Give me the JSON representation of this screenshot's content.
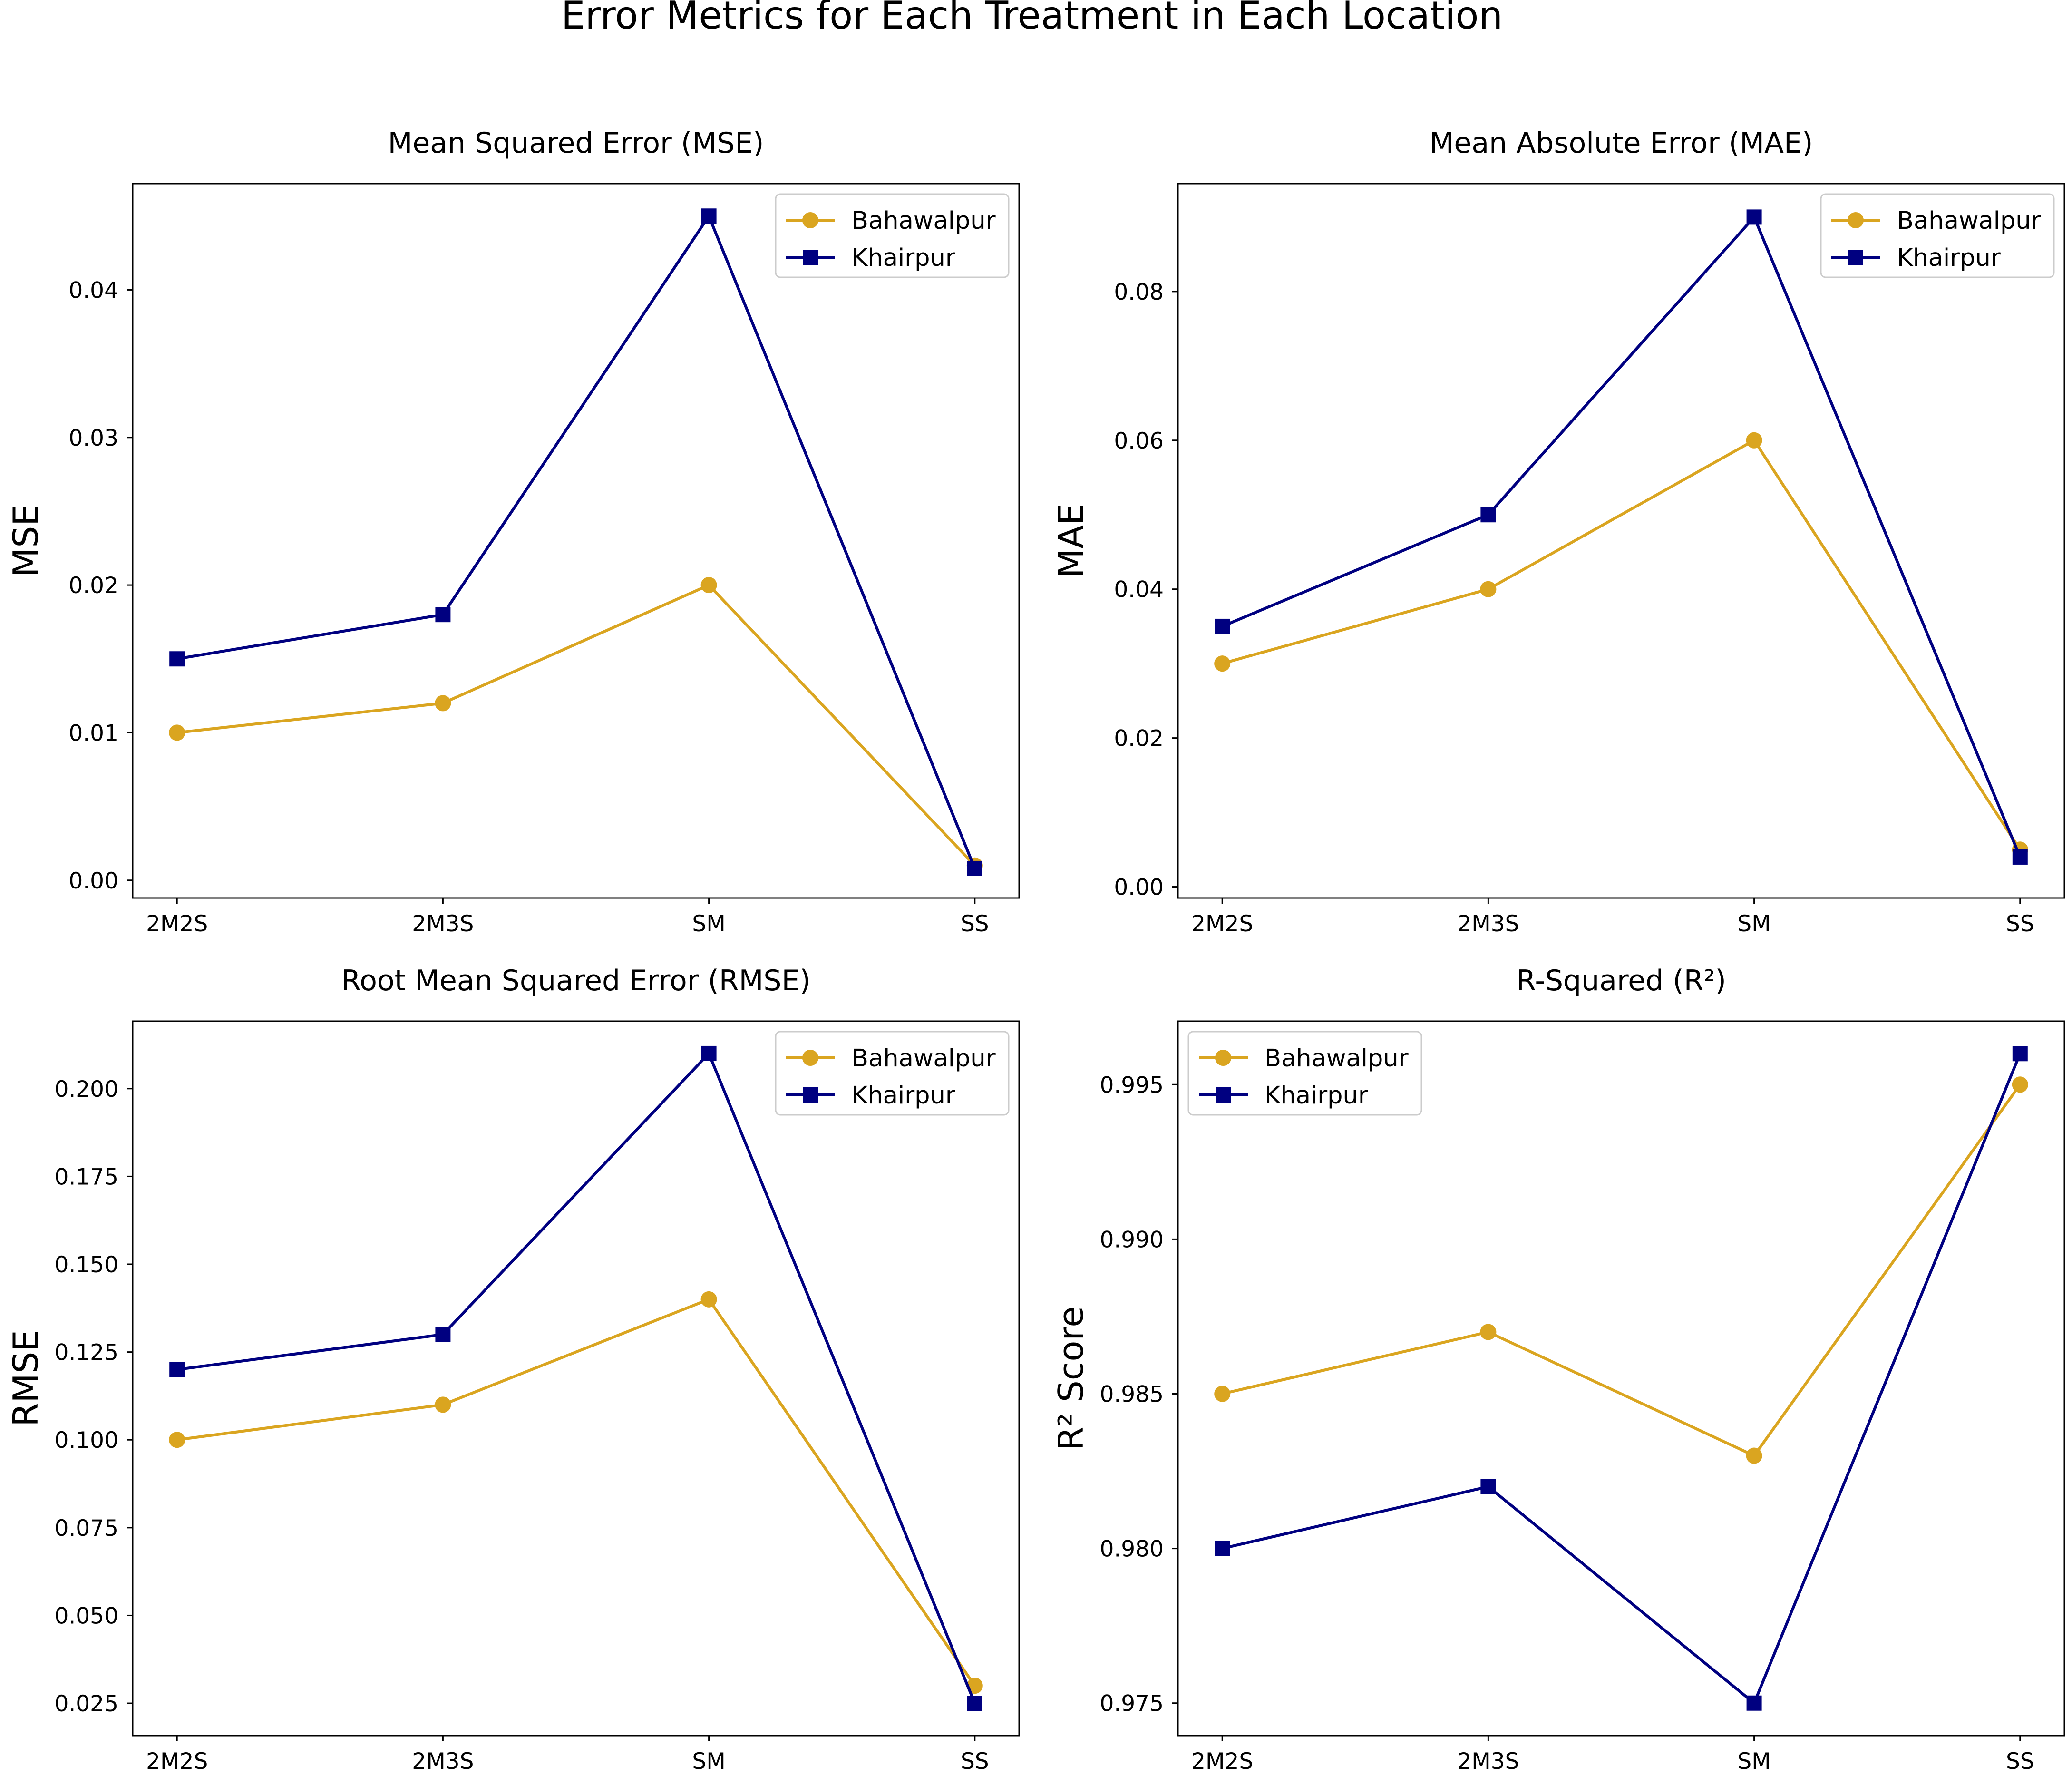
{
  "title": "Error Metrics for Each Treatment in Each Location",
  "colors": {
    "bahawalpur": "#DAA520",
    "khairpur": "#000080",
    "axis": "#000000",
    "legend_border": "#cccccc"
  },
  "chart_data": [
    {
      "type": "line",
      "title": "Mean Squared Error (MSE)",
      "xlabel": "",
      "ylabel": "MSE",
      "categories": [
        "2M2S",
        "2M3S",
        "SM",
        "SS"
      ],
      "ylim": [
        -0.0012,
        0.0472
      ],
      "yticks": [
        0.0,
        0.01,
        0.02,
        0.03,
        0.04
      ],
      "ytick_labels": [
        "0.00",
        "0.01",
        "0.02",
        "0.03",
        "0.04"
      ],
      "legend_position": "upper right",
      "series": [
        {
          "name": "Bahawalpur",
          "values": [
            0.01,
            0.012,
            0.02,
            0.001
          ],
          "color": "#DAA520",
          "marker": "circle"
        },
        {
          "name": "Khairpur",
          "values": [
            0.015,
            0.018,
            0.045,
            0.0008
          ],
          "color": "#000080",
          "marker": "square"
        }
      ]
    },
    {
      "type": "line",
      "title": "Mean Absolute Error (MAE)",
      "xlabel": "",
      "ylabel": "MAE",
      "categories": [
        "2M2S",
        "2M3S",
        "SM",
        "SS"
      ],
      "ylim": [
        -0.0015,
        0.0945
      ],
      "yticks": [
        0.0,
        0.02,
        0.04,
        0.06,
        0.08
      ],
      "ytick_labels": [
        "0.00",
        "0.02",
        "0.04",
        "0.06",
        "0.08"
      ],
      "legend_position": "upper right",
      "series": [
        {
          "name": "Bahawalpur",
          "values": [
            0.03,
            0.04,
            0.06,
            0.005
          ],
          "color": "#DAA520",
          "marker": "circle"
        },
        {
          "name": "Khairpur",
          "values": [
            0.035,
            0.05,
            0.09,
            0.004
          ],
          "color": "#000080",
          "marker": "square"
        }
      ]
    },
    {
      "type": "line",
      "title": "Root Mean Squared Error (RMSE)",
      "xlabel": "",
      "ylabel": "RMSE",
      "categories": [
        "2M2S",
        "2M3S",
        "SM",
        "SS"
      ],
      "ylim": [
        0.0158,
        0.2192
      ],
      "yticks": [
        0.025,
        0.05,
        0.075,
        0.1,
        0.125,
        0.15,
        0.175,
        0.2
      ],
      "ytick_labels": [
        "0.025",
        "0.050",
        "0.075",
        "0.100",
        "0.125",
        "0.150",
        "0.175",
        "0.200"
      ],
      "legend_position": "upper right",
      "series": [
        {
          "name": "Bahawalpur",
          "values": [
            0.1,
            0.11,
            0.14,
            0.03
          ],
          "color": "#DAA520",
          "marker": "circle"
        },
        {
          "name": "Khairpur",
          "values": [
            0.12,
            0.13,
            0.21,
            0.025
          ],
          "color": "#000080",
          "marker": "square"
        }
      ]
    },
    {
      "type": "line",
      "title": "R-Squared (R²)",
      "xlabel": "",
      "ylabel": "R² Score",
      "categories": [
        "2M2S",
        "2M3S",
        "SM",
        "SS"
      ],
      "ylim": [
        0.97395,
        0.99705
      ],
      "yticks": [
        0.975,
        0.98,
        0.985,
        0.99,
        0.995
      ],
      "ytick_labels": [
        "0.975",
        "0.980",
        "0.985",
        "0.990",
        "0.995"
      ],
      "legend_position": "upper left",
      "series": [
        {
          "name": "Bahawalpur",
          "values": [
            0.985,
            0.987,
            0.983,
            0.995
          ],
          "color": "#DAA520",
          "marker": "circle"
        },
        {
          "name": "Khairpur",
          "values": [
            0.98,
            0.982,
            0.975,
            0.996
          ],
          "color": "#000080",
          "marker": "square"
        }
      ]
    }
  ]
}
